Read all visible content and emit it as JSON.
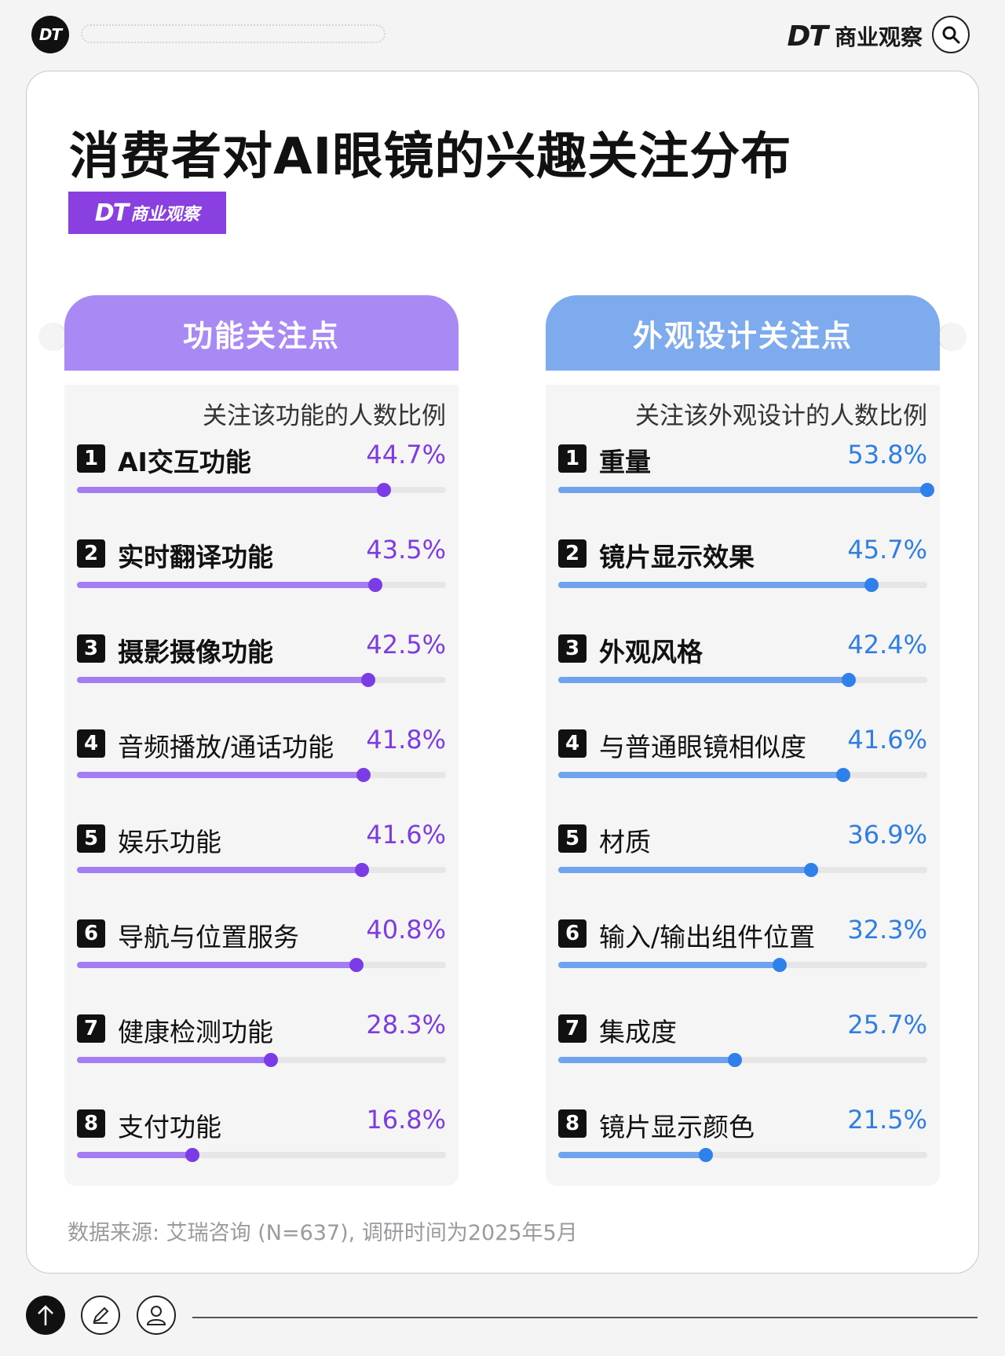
{
  "header": {
    "logo_text": "DT",
    "brand_logo": "DT",
    "brand_name": "商业观察",
    "search_icon": "search-icon"
  },
  "title": "消费者对AI眼镜的兴趣关注分布",
  "badge": {
    "logo": "DT",
    "name": "商业观察"
  },
  "colors": {
    "function_accent": "#7d3ce0",
    "function_bar": "#a47df2",
    "design_accent": "#2f7ee0",
    "design_bar": "#6fa3ec"
  },
  "chart_data": [
    {
      "type": "bar",
      "title": "功能关注点",
      "subtitle": "关注该功能的人数比例",
      "orientation": "horizontal",
      "xlim": [
        0,
        53.8
      ],
      "categories": [
        "AI交互功能",
        "实时翻译功能",
        "摄影摄像功能",
        "音频播放/通话功能",
        "娱乐功能",
        "导航与位置服务",
        "健康检测功能",
        "支付功能"
      ],
      "values": [
        44.7,
        43.5,
        42.5,
        41.8,
        41.6,
        40.8,
        28.3,
        16.8
      ],
      "labels": [
        "44.7%",
        "43.5%",
        "42.5%",
        "41.8%",
        "41.6%",
        "40.8%",
        "28.3%",
        "16.8%"
      ],
      "ranks": [
        "1",
        "2",
        "3",
        "4",
        "5",
        "6",
        "7",
        "8"
      ],
      "unit": "%"
    },
    {
      "type": "bar",
      "title": "外观设计关注点",
      "subtitle": "关注该外观设计的人数比例",
      "orientation": "horizontal",
      "xlim": [
        0,
        53.8
      ],
      "categories": [
        "重量",
        "镜片显示效果",
        "外观风格",
        "与普通眼镜相似度",
        "材质",
        "输入/输出组件位置",
        "集成度",
        "镜片显示颜色"
      ],
      "values": [
        53.8,
        45.7,
        42.4,
        41.6,
        36.9,
        32.3,
        25.7,
        21.5
      ],
      "labels": [
        "53.8%",
        "45.7%",
        "42.4%",
        "41.6%",
        "36.9%",
        "32.3%",
        "25.7%",
        "21.5%"
      ],
      "ranks": [
        "1",
        "2",
        "3",
        "4",
        "5",
        "6",
        "7",
        "8"
      ],
      "unit": "%"
    }
  ],
  "source": "数据来源: 艾瑞咨询 (N=637), 调研时间为2025年5月",
  "footer": {
    "up_icon": "arrow-up-icon",
    "edit_icon": "pencil-icon",
    "user_icon": "user-icon"
  }
}
